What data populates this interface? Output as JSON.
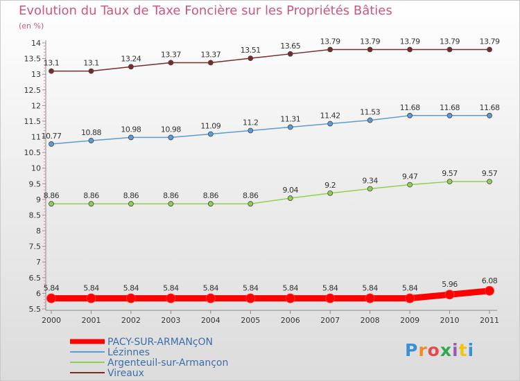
{
  "chart_data": {
    "type": "line",
    "title": "Evolution du Taux de Taxe Foncière sur les Propriétés Bâties",
    "subtitle": "(en %)",
    "x": [
      "2000",
      "2001",
      "2002",
      "2003",
      "2004",
      "2005",
      "2006",
      "2007",
      "2008",
      "2009",
      "2010",
      "2011"
    ],
    "ylim": [
      5.5,
      14
    ],
    "y_ticks": [
      "5.5",
      "6",
      "6.5",
      "7",
      "7.5",
      "8",
      "8.5",
      "9",
      "9.5",
      "10",
      "10.5",
      "11",
      "11.5",
      "12",
      "12.5",
      "13",
      "13.5",
      "14"
    ],
    "grid": false,
    "legend_position": "bottom-left",
    "series": [
      {
        "name": "PACY-SUR-ARMANçON",
        "color": "#ff0000",
        "values": [
          5.84,
          5.84,
          5.84,
          5.84,
          5.84,
          5.84,
          5.84,
          5.84,
          5.84,
          5.84,
          5.96,
          6.08
        ],
        "labels": [
          "5.84",
          "5.84",
          "5.84",
          "5.84",
          "5.84",
          "5.84",
          "5.84",
          "5.84",
          "5.84",
          "5.84",
          "5.96",
          "6.08"
        ]
      },
      {
        "name": "Lézinnes",
        "color": "#5b9bd5",
        "values": [
          10.77,
          10.88,
          10.98,
          10.98,
          11.09,
          11.2,
          11.31,
          11.42,
          11.53,
          11.68,
          11.68,
          11.68
        ],
        "labels": [
          "10.77",
          "10.88",
          "10.98",
          "10.98",
          "11.09",
          "11.2",
          "11.31",
          "11.42",
          "11.53",
          "11.68",
          "11.68",
          "11.68"
        ]
      },
      {
        "name": "Argenteuil-sur-Armançon",
        "color": "#8fd14f",
        "values": [
          8.86,
          8.86,
          8.86,
          8.86,
          8.86,
          8.86,
          9.04,
          9.2,
          9.34,
          9.47,
          9.57,
          9.57
        ],
        "labels": [
          "8.86",
          "8.86",
          "8.86",
          "8.86",
          "8.86",
          "8.86",
          "9.04",
          "9.2",
          "9.34",
          "9.47",
          "9.57",
          "9.57"
        ]
      },
      {
        "name": "Vireaux",
        "color": "#7b2a2a",
        "values": [
          13.1,
          13.1,
          13.24,
          13.37,
          13.37,
          13.51,
          13.65,
          13.79,
          13.79,
          13.79,
          13.79,
          13.79
        ],
        "labels": [
          "13.1",
          "13.1",
          "13.24",
          "13.37",
          "13.37",
          "13.51",
          "13.65",
          "13.79",
          "13.79",
          "13.79",
          "13.79",
          "13.79"
        ]
      }
    ]
  },
  "logo_letters": [
    "P",
    "r",
    "o",
    "x",
    "i",
    "t",
    "i"
  ]
}
